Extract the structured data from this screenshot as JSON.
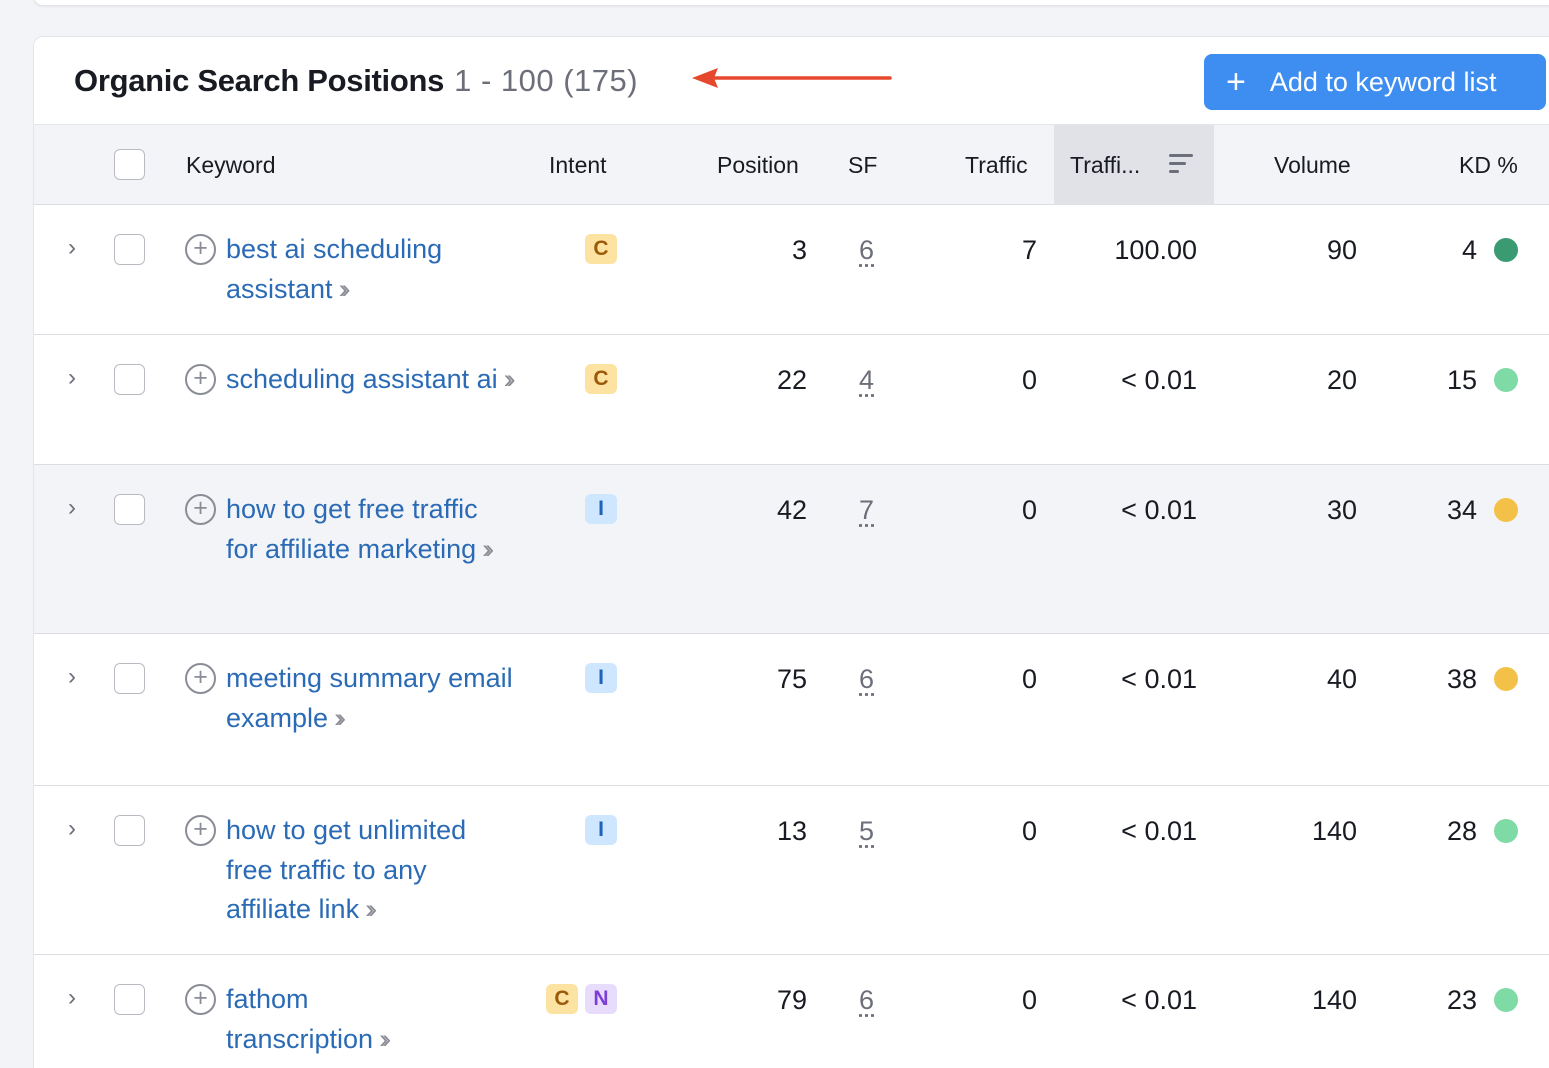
{
  "header": {
    "title": "Organic Search Positions",
    "count": "1 - 100 (175)",
    "add_button_label": "Add to keyword list"
  },
  "columns": {
    "keyword": "Keyword",
    "intent": "Intent",
    "position": "Position",
    "sf": "SF",
    "traffic": "Traffic",
    "traffic_pct": "Traffi...",
    "volume": "Volume",
    "kd": "KD %"
  },
  "rows": [
    {
      "keyword": "best ai scheduling assistant",
      "intents": [
        "C"
      ],
      "position": "3",
      "sf": "6",
      "traffic": "7",
      "traffic_pct": "100.00",
      "volume": "90",
      "kd": "4",
      "kd_color": "#3a9b73"
    },
    {
      "keyword": "scheduling assistant ai",
      "intents": [
        "C"
      ],
      "position": "22",
      "sf": "4",
      "traffic": "0",
      "traffic_pct": "< 0.01",
      "volume": "20",
      "kd": "15",
      "kd_color": "#7fdba6"
    },
    {
      "keyword": "how to get free traffic for affiliate marketing",
      "intents": [
        "I"
      ],
      "position": "42",
      "sf": "7",
      "traffic": "0",
      "traffic_pct": "< 0.01",
      "volume": "30",
      "kd": "34",
      "kd_color": "#f4c148"
    },
    {
      "keyword": "meeting summary email example",
      "intents": [
        "I"
      ],
      "position": "75",
      "sf": "6",
      "traffic": "0",
      "traffic_pct": "< 0.01",
      "volume": "40",
      "kd": "38",
      "kd_color": "#f4c148"
    },
    {
      "keyword": "how to get unlimited free traffic to any affiliate link",
      "intents": [
        "I"
      ],
      "position": "13",
      "sf": "5",
      "traffic": "0",
      "traffic_pct": "< 0.01",
      "volume": "140",
      "kd": "28",
      "kd_color": "#7fdba6"
    },
    {
      "keyword": "fathom transcription",
      "intents": [
        "C",
        "N"
      ],
      "position": "79",
      "sf": "6",
      "traffic": "0",
      "traffic_pct": "< 0.01",
      "volume": "140",
      "kd": "23",
      "kd_color": "#7fdba6"
    }
  ],
  "icons": {
    "expand": "chevron-right-icon",
    "add_keyword": "plus-circle-icon",
    "open_keyword": "double-chevron-right-icon",
    "sort": "sort-descending-icon",
    "annotation": "red-arrow-icon"
  },
  "colors": {
    "accent": "#3d8ef0",
    "link": "#2b6bb5",
    "annotation_arrow": "#e5482c"
  }
}
